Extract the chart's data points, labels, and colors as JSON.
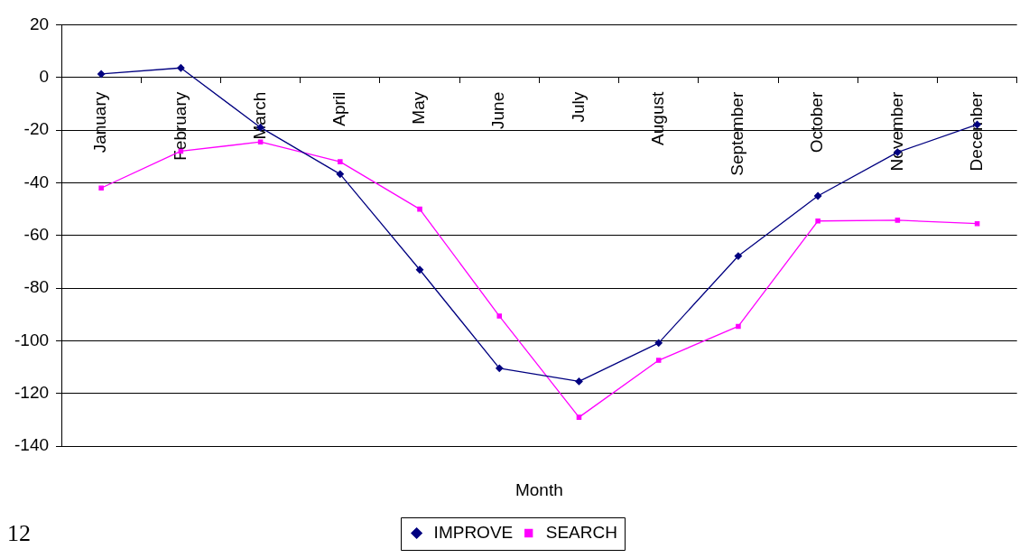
{
  "chart_data": {
    "type": "line",
    "xlabel": "Month",
    "categories": [
      "January",
      "February",
      "March",
      "April",
      "May",
      "June",
      "July",
      "August",
      "September",
      "October",
      "November",
      "December"
    ],
    "series": [
      {
        "name": "IMPROVE",
        "color": "#000080",
        "marker": "diamond",
        "values": [
          1.3,
          3.6,
          -19,
          -36.7,
          -73,
          -110.4,
          -115.4,
          -100.8,
          -67.8,
          -45,
          -28.4,
          -17.9
        ]
      },
      {
        "name": "SEARCH",
        "color": "#ff00ff",
        "marker": "square",
        "values": [
          -42,
          -28,
          -24.5,
          -32,
          -50,
          -90.6,
          -129,
          -107.4,
          -94.5,
          -54.5,
          -54.2,
          -55.5
        ]
      }
    ],
    "ylim": [
      -140,
      20
    ],
    "yticks": [
      -140,
      -120,
      -100,
      -80,
      -60,
      -40,
      -20,
      0,
      20
    ],
    "grid": "y",
    "legend": "bottom",
    "annotations": [
      "12"
    ]
  }
}
